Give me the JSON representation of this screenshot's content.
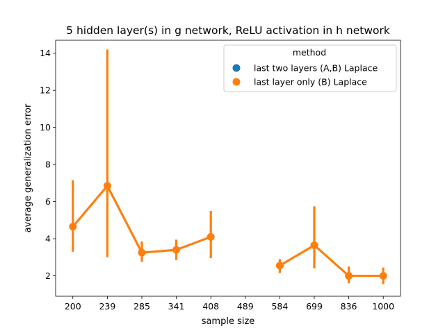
{
  "chart_data": {
    "type": "line",
    "title": "5 hidden layer(s) in g network, ReLU activation in h network",
    "xlabel": "sample size",
    "ylabel": "average generalization error",
    "categories": [
      "200",
      "239",
      "285",
      "341",
      "408",
      "489",
      "584",
      "699",
      "836",
      "1000"
    ],
    "ylim": [
      0.9,
      14.7
    ],
    "yticks": [
      2,
      4,
      6,
      8,
      10,
      12,
      14
    ],
    "grid": false,
    "legend": {
      "title": "method",
      "position": "top-right",
      "entries": [
        {
          "label": "last two layers (A,B) Laplace",
          "color": "#1f77b4"
        },
        {
          "label": "last layer only (B) Laplace",
          "color": "#ff7f0e"
        }
      ]
    },
    "series": [
      {
        "name": "last two layers (A,B) Laplace",
        "color": "#1f77b4",
        "values": [
          null,
          null,
          null,
          null,
          null,
          null,
          null,
          null,
          null,
          null
        ],
        "ci_low": [
          null,
          null,
          null,
          null,
          null,
          null,
          null,
          null,
          null,
          null
        ],
        "ci_high": [
          null,
          null,
          null,
          null,
          null,
          null,
          null,
          null,
          null,
          null
        ]
      },
      {
        "name": "last layer only (B) Laplace",
        "color": "#ff7f0e",
        "values": [
          4.65,
          6.85,
          3.25,
          3.4,
          4.1,
          null,
          2.55,
          3.65,
          2.0,
          2.0
        ],
        "ci_low": [
          3.3,
          3.0,
          2.75,
          2.85,
          2.95,
          null,
          2.15,
          2.4,
          1.6,
          1.55
        ],
        "ci_high": [
          7.15,
          14.2,
          3.85,
          3.95,
          5.5,
          null,
          2.9,
          5.75,
          2.5,
          2.45
        ]
      }
    ]
  }
}
